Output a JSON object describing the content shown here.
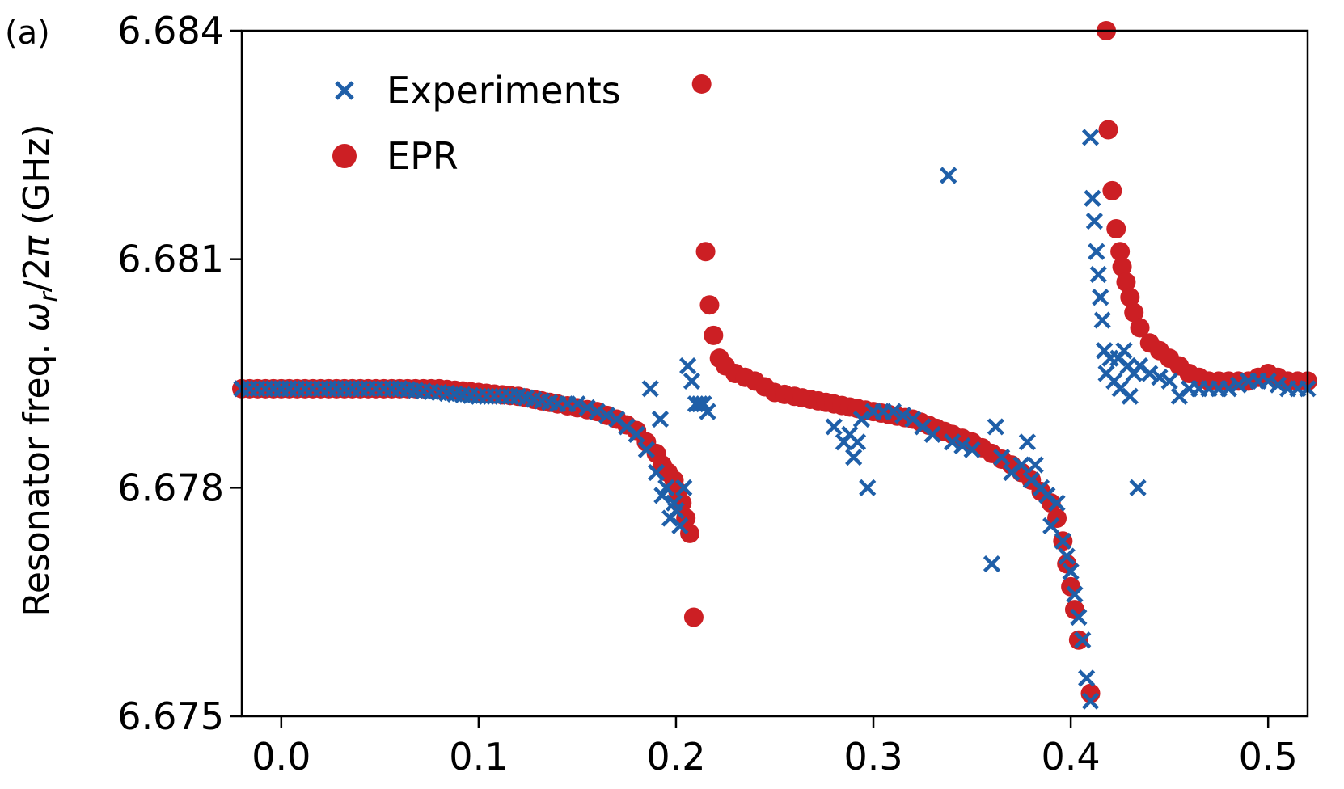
{
  "panel_label": "(a)",
  "colors": {
    "experiments": "#1f5fa8",
    "epr": "#cc1f24",
    "axis": "#000000"
  },
  "chart_data": {
    "type": "scatter",
    "title": "",
    "xlabel": "",
    "ylabel_main": "Resonator freq. ",
    "ylabel_sym": "ω",
    "ylabel_sub": "r",
    "ylabel_tail": "/2",
    "ylabel_pi": "π",
    "ylabel_unit": " (GHz)",
    "xlim": [
      -0.02,
      0.52
    ],
    "ylim": [
      6.675,
      6.684
    ],
    "xticks": [
      0.0,
      0.1,
      0.2,
      0.3,
      0.4,
      0.5
    ],
    "xtick_labels": [
      "0.0",
      "0.1",
      "0.2",
      "0.3",
      "0.4",
      "0.5"
    ],
    "yticks": [
      6.675,
      6.678,
      6.681,
      6.684
    ],
    "ytick_labels": [
      "6.675",
      "6.678",
      "6.681",
      "6.684"
    ],
    "legend_position": "top-left",
    "legend": [
      "Experiments",
      "EPR"
    ],
    "series": [
      {
        "name": "EPR",
        "marker": "circle",
        "color": "#cc1f24",
        "x": [
          -0.02,
          0.0,
          0.02,
          0.04,
          0.06,
          0.08,
          0.1,
          0.12,
          0.14,
          0.15,
          0.16,
          0.17,
          0.18,
          0.185,
          0.19,
          0.193,
          0.196,
          0.199,
          0.201,
          0.203,
          0.205,
          0.207,
          0.209,
          0.213,
          0.215,
          0.217,
          0.219,
          0.222,
          0.225,
          0.23,
          0.24,
          0.25,
          0.26,
          0.28,
          0.3,
          0.32,
          0.34,
          0.35,
          0.36,
          0.37,
          0.375,
          0.38,
          0.385,
          0.39,
          0.393,
          0.396,
          0.398,
          0.4,
          0.402,
          0.404,
          0.41,
          0.416,
          0.418,
          0.419,
          0.421,
          0.423,
          0.425,
          0.426,
          0.428,
          0.43,
          0.432,
          0.435,
          0.44,
          0.45,
          0.46,
          0.47,
          0.48,
          0.49,
          0.5,
          0.51,
          0.52
        ],
        "y": [
          6.6793,
          6.6793,
          6.6793,
          6.6793,
          6.6793,
          6.6793,
          6.67925,
          6.6792,
          6.6791,
          6.67905,
          6.679,
          6.6789,
          6.67875,
          6.6786,
          6.67845,
          6.6783,
          6.6782,
          6.6781,
          6.67795,
          6.6778,
          6.6776,
          6.6774,
          6.6763,
          6.6833,
          6.6811,
          6.6804,
          6.68,
          6.6797,
          6.6796,
          6.6795,
          6.6794,
          6.67925,
          6.6792,
          6.6791,
          6.679,
          6.6789,
          6.6787,
          6.6786,
          6.67845,
          6.6783,
          6.6782,
          6.6781,
          6.67795,
          6.6778,
          6.6776,
          6.6773,
          6.677,
          6.6767,
          6.6764,
          6.676,
          6.6753,
          6.6843,
          6.684,
          6.6827,
          6.6819,
          6.6814,
          6.6811,
          6.6809,
          6.6807,
          6.6805,
          6.6803,
          6.6801,
          6.6799,
          6.6797,
          6.6795,
          6.6794,
          6.6794,
          6.6794,
          6.6795,
          6.6794,
          6.6794
        ]
      },
      {
        "name": "Experiments",
        "marker": "x",
        "color": "#1f5fa8",
        "x": [
          -0.02,
          0.0,
          0.02,
          0.04,
          0.06,
          0.08,
          0.1,
          0.12,
          0.14,
          0.15,
          0.16,
          0.17,
          0.175,
          0.18,
          0.185,
          0.187,
          0.19,
          0.192,
          0.193,
          0.195,
          0.197,
          0.199,
          0.2,
          0.202,
          0.204,
          0.206,
          0.208,
          0.21,
          0.212,
          0.214,
          0.216,
          0.28,
          0.285,
          0.288,
          0.29,
          0.292,
          0.294,
          0.297,
          0.3,
          0.31,
          0.32,
          0.33,
          0.338,
          0.34,
          0.35,
          0.36,
          0.362,
          0.365,
          0.37,
          0.375,
          0.378,
          0.38,
          0.382,
          0.385,
          0.388,
          0.39,
          0.393,
          0.396,
          0.398,
          0.4,
          0.402,
          0.404,
          0.406,
          0.408,
          0.41,
          0.41,
          0.411,
          0.412,
          0.413,
          0.414,
          0.415,
          0.416,
          0.417,
          0.418,
          0.42,
          0.422,
          0.424,
          0.425,
          0.427,
          0.429,
          0.43,
          0.432,
          0.434,
          0.435,
          0.44,
          0.45,
          0.455,
          0.46,
          0.47,
          0.48,
          0.49,
          0.5,
          0.51,
          0.52
        ],
        "y": [
          6.6793,
          6.6793,
          6.6793,
          6.6793,
          6.6793,
          6.67925,
          6.6792,
          6.6792,
          6.6791,
          6.6791,
          6.679,
          6.6789,
          6.6788,
          6.6787,
          6.6785,
          6.6793,
          6.6782,
          6.6789,
          6.6779,
          6.678,
          6.6776,
          6.6778,
          6.6777,
          6.6775,
          6.678,
          6.6796,
          6.6794,
          6.6791,
          6.6791,
          6.6791,
          6.679,
          6.6788,
          6.6786,
          6.6787,
          6.6784,
          6.6786,
          6.6789,
          6.678,
          6.679,
          6.679,
          6.6789,
          6.6787,
          6.6821,
          6.6786,
          6.6785,
          6.677,
          6.6788,
          6.6784,
          6.6782,
          6.6783,
          6.6786,
          6.6781,
          6.6783,
          6.678,
          6.6779,
          6.6775,
          6.6778,
          6.6773,
          6.6771,
          6.6769,
          6.6766,
          6.6763,
          6.676,
          6.6755,
          6.6752,
          6.6826,
          6.6818,
          6.6815,
          6.6811,
          6.6808,
          6.6805,
          6.6802,
          6.6798,
          6.6795,
          6.6797,
          6.6794,
          6.6797,
          6.6793,
          6.6798,
          6.6796,
          6.6792,
          6.6795,
          6.678,
          6.6796,
          6.6795,
          6.6794,
          6.6792,
          6.6793,
          6.6793,
          6.6793,
          6.6794,
          6.6794,
          6.6793,
          6.6793
        ]
      }
    ]
  }
}
